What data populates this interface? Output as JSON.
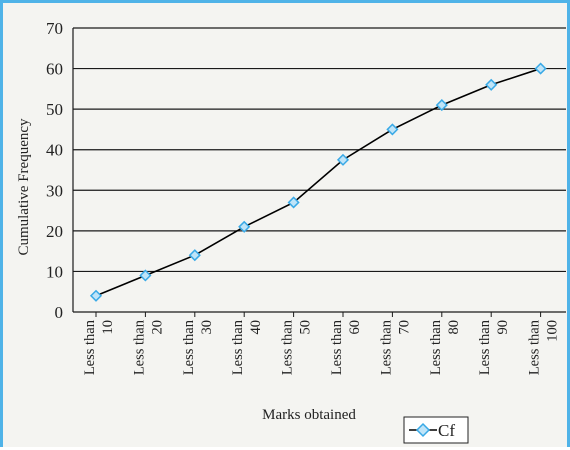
{
  "chart_data": {
    "type": "line",
    "title": "",
    "xlabel": "Marks obtained",
    "ylabel": "Cumulative Frequency",
    "ylim": [
      0,
      70
    ],
    "yticks": [
      0,
      10,
      20,
      30,
      40,
      50,
      60,
      70
    ],
    "grid": "horizontal",
    "legend_placement": "bottom-right",
    "categories": [
      [
        "Less than",
        "10"
      ],
      [
        "Less than",
        "20"
      ],
      [
        "Less than",
        "30"
      ],
      [
        "Less than",
        "40"
      ],
      [
        "Less than",
        "50"
      ],
      [
        "Less than",
        "60"
      ],
      [
        "Less than",
        "70"
      ],
      [
        "Less than",
        "80"
      ],
      [
        "Less than",
        "90"
      ],
      [
        "Less than",
        "100"
      ]
    ],
    "series": [
      {
        "name": "Cf",
        "values": [
          4,
          9,
          14,
          21,
          27,
          37.5,
          45,
          51,
          56,
          60
        ],
        "color": "#000000",
        "marker_color": "#39a9e6"
      }
    ]
  }
}
